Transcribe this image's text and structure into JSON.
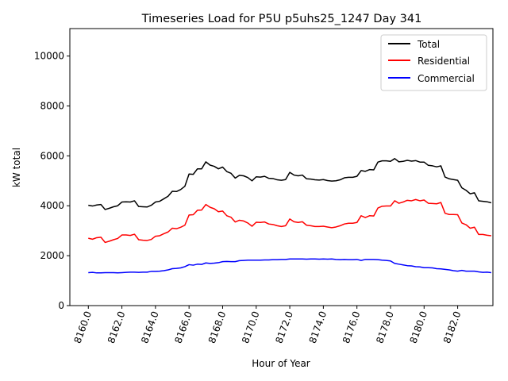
{
  "chart_data": {
    "type": "line",
    "title": "Timeseries Load for P5U p5uhs25_1247  Day 341",
    "xlabel": "Hour of Year",
    "ylabel": "kW total",
    "xlim": [
      8158.9,
      8184.1
    ],
    "ylim": [
      0,
      11100
    ],
    "xticks": [
      8160,
      8162,
      8164,
      8166,
      8168,
      8170,
      8172,
      8174,
      8176,
      8178,
      8180,
      8182
    ],
    "xtick_labels": [
      "8160.0",
      "8162.0",
      "8164.0",
      "8166.0",
      "8168.0",
      "8170.0",
      "8172.0",
      "8174.0",
      "8176.0",
      "8178.0",
      "8180.0",
      "8182.0"
    ],
    "yticks": [
      0,
      2000,
      4000,
      6000,
      8000,
      10000
    ],
    "ytick_labels": [
      "0",
      "2000",
      "4000",
      "6000",
      "8000",
      "10000"
    ],
    "legend_position": "top-right",
    "x_start": 8160,
    "x_step": 0.25,
    "series": [
      {
        "name": "Total",
        "color": "#000000",
        "values": [
          4020,
          3990,
          4030,
          4050,
          3850,
          3900,
          3960,
          4000,
          4150,
          4160,
          4150,
          4200,
          3970,
          3960,
          3950,
          4020,
          4150,
          4180,
          4280,
          4380,
          4580,
          4570,
          4650,
          4780,
          5270,
          5260,
          5480,
          5480,
          5760,
          5630,
          5580,
          5480,
          5550,
          5370,
          5300,
          5110,
          5220,
          5200,
          5130,
          5000,
          5160,
          5150,
          5180,
          5100,
          5090,
          5040,
          5020,
          5050,
          5340,
          5230,
          5200,
          5230,
          5080,
          5070,
          5040,
          5030,
          5050,
          5010,
          4990,
          5000,
          5040,
          5120,
          5140,
          5140,
          5180,
          5410,
          5380,
          5450,
          5440,
          5750,
          5800,
          5800,
          5780,
          5890,
          5760,
          5780,
          5820,
          5790,
          5810,
          5750,
          5750,
          5620,
          5600,
          5560,
          5600,
          5150,
          5080,
          5050,
          5020,
          4720,
          4620,
          4480,
          4520,
          4200,
          4180,
          4160,
          4120
        ]
      },
      {
        "name": "Residential",
        "color": "#ff0000",
        "values": [
          2700,
          2660,
          2720,
          2740,
          2530,
          2580,
          2640,
          2690,
          2830,
          2830,
          2810,
          2860,
          2640,
          2620,
          2610,
          2650,
          2780,
          2800,
          2880,
          2950,
          3100,
          3080,
          3140,
          3220,
          3630,
          3640,
          3820,
          3830,
          4050,
          3940,
          3880,
          3760,
          3790,
          3600,
          3540,
          3350,
          3420,
          3390,
          3310,
          3180,
          3340,
          3330,
          3350,
          3270,
          3250,
          3200,
          3170,
          3200,
          3470,
          3360,
          3330,
          3360,
          3220,
          3200,
          3170,
          3170,
          3180,
          3150,
          3120,
          3150,
          3200,
          3270,
          3300,
          3300,
          3330,
          3600,
          3530,
          3600,
          3590,
          3910,
          3980,
          3990,
          3990,
          4200,
          4100,
          4150,
          4220,
          4200,
          4250,
          4200,
          4230,
          4100,
          4090,
          4080,
          4130,
          3700,
          3650,
          3650,
          3640,
          3310,
          3240,
          3100,
          3140,
          2850,
          2850,
          2820,
          2800
        ]
      },
      {
        "name": "Commercial",
        "color": "#0000ff",
        "values": [
          1320,
          1330,
          1310,
          1310,
          1320,
          1320,
          1320,
          1310,
          1320,
          1330,
          1340,
          1340,
          1330,
          1340,
          1340,
          1370,
          1370,
          1380,
          1400,
          1430,
          1480,
          1490,
          1510,
          1560,
          1640,
          1620,
          1660,
          1650,
          1710,
          1690,
          1700,
          1720,
          1760,
          1770,
          1760,
          1760,
          1800,
          1810,
          1820,
          1820,
          1820,
          1820,
          1830,
          1830,
          1840,
          1840,
          1850,
          1850,
          1870,
          1870,
          1870,
          1870,
          1860,
          1870,
          1870,
          1860,
          1870,
          1860,
          1870,
          1850,
          1840,
          1850,
          1840,
          1840,
          1850,
          1810,
          1850,
          1850,
          1850,
          1840,
          1820,
          1810,
          1790,
          1690,
          1660,
          1630,
          1600,
          1590,
          1560,
          1550,
          1520,
          1520,
          1510,
          1480,
          1470,
          1450,
          1430,
          1400,
          1380,
          1410,
          1380,
          1380,
          1380,
          1350,
          1330,
          1340,
          1320
        ]
      }
    ]
  }
}
